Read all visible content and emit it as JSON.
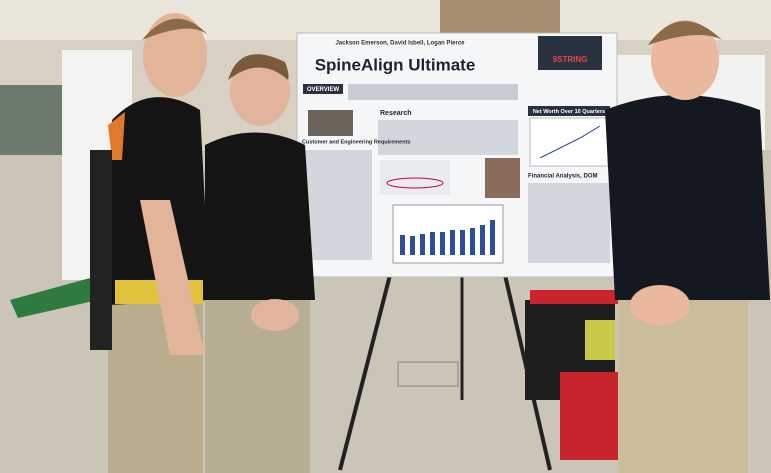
{
  "poster": {
    "authors": "Jackson Emerson, David Isbell, Logan Pierce",
    "title": "SpineAlign Ultimate",
    "logo": "9STRING",
    "sections": [
      "OVERVIEW",
      "Research",
      "Customer and Engineering Requirements",
      "Net Worth Over 10 Quarters",
      "Financial Analysis, DOM"
    ]
  }
}
